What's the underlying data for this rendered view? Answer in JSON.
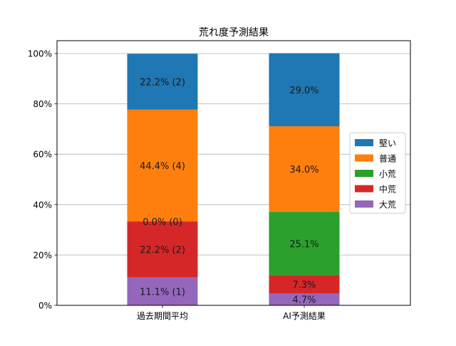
{
  "chart_data": {
    "type": "bar",
    "stacked": true,
    "title": "荒れ度予測結果",
    "xlabel": "",
    "ylabel": "",
    "ylim": [
      0,
      100
    ],
    "y_tick_labels": [
      "0%",
      "20%",
      "40%",
      "60%",
      "80%",
      "100%"
    ],
    "y_ticks": [
      0,
      20,
      40,
      60,
      80,
      100
    ],
    "grid": "horizontal",
    "legend_position": "center-right",
    "categories": [
      "過去期間平均",
      "AI予測結果"
    ],
    "series": [
      {
        "name": "大荒",
        "color": "#9467bd",
        "values": [
          11.1,
          4.7
        ],
        "labels": [
          "11.1% (1)",
          "4.7%"
        ]
      },
      {
        "name": "中荒",
        "color": "#d62728",
        "values": [
          22.2,
          7.3
        ],
        "labels": [
          "22.2% (2)",
          "7.3%"
        ]
      },
      {
        "name": "小荒",
        "color": "#2ca02c",
        "values": [
          0.0,
          25.1
        ],
        "labels": [
          "0.0% (0)",
          "25.1%"
        ]
      },
      {
        "name": "普通",
        "color": "#ff7f0e",
        "values": [
          44.4,
          34.0
        ],
        "labels": [
          "44.4% (4)",
          "34.0%"
        ]
      },
      {
        "name": "堅い",
        "color": "#1f77b4",
        "values": [
          22.2,
          29.0
        ],
        "labels": [
          "22.2% (2)",
          "29.0%"
        ]
      }
    ],
    "legend_order": [
      "堅い",
      "普通",
      "小荒",
      "中荒",
      "大荒"
    ]
  }
}
